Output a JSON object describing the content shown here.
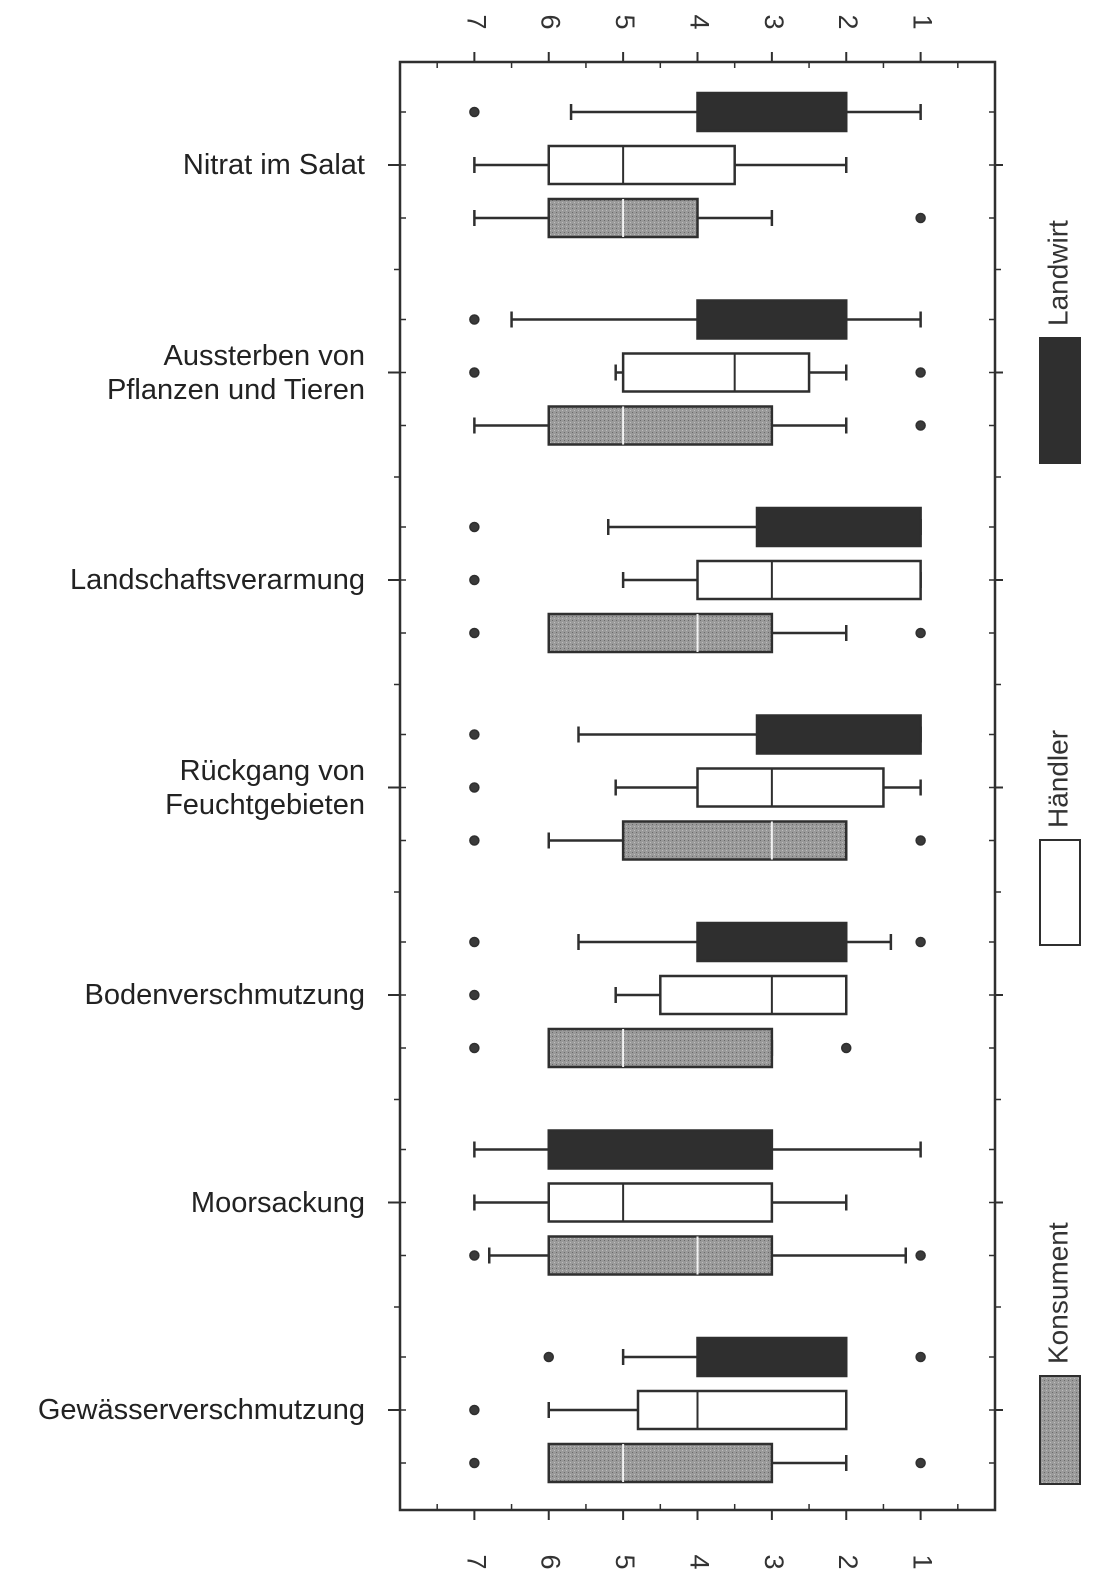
{
  "chart_data": {
    "type": "boxplot",
    "orientation": "horizontal",
    "value_axis": {
      "range": [
        0,
        8
      ],
      "reversed": true,
      "ticks": [
        7,
        6,
        5,
        4,
        3,
        2,
        1
      ],
      "tick_labels": [
        "7",
        "6",
        "5",
        "4",
        "3",
        "2",
        "1"
      ]
    },
    "categories": [
      {
        "label_lines": [
          "Nitrat im Salat"
        ]
      },
      {
        "label_lines": [
          "Aussterben von",
          "Pflanzen und Tieren"
        ]
      },
      {
        "label_lines": [
          "Landschaftsverarmung"
        ]
      },
      {
        "label_lines": [
          "Rückgang von",
          "Feuchtgebieten"
        ]
      },
      {
        "label_lines": [
          "Bodenverschmutzung"
        ]
      },
      {
        "label_lines": [
          "Moorsackung"
        ]
      },
      {
        "label_lines": [
          "Gewässerverschmutzung"
        ]
      }
    ],
    "series": [
      {
        "name": "Landwirt",
        "color": "#2f2f2f",
        "median_color": "#2f2f2f",
        "boxes": [
          {
            "whisker_low": 1,
            "q1": 2,
            "median": 2,
            "q3": 4,
            "whisker_high": 5.7,
            "outliers": [
              7
            ]
          },
          {
            "whisker_low": 1,
            "q1": 2,
            "median": 2,
            "q3": 4,
            "whisker_high": 6.5,
            "outliers": [
              7
            ]
          },
          {
            "whisker_low": 1,
            "q1": 1,
            "median": 1,
            "q3": 3.2,
            "whisker_high": 5.2,
            "outliers": [
              7
            ]
          },
          {
            "whisker_low": 1,
            "q1": 1,
            "median": 1,
            "q3": 3.2,
            "whisker_high": 5.6,
            "outliers": [
              7
            ]
          },
          {
            "whisker_low": 1.4,
            "q1": 2,
            "median": 2,
            "q3": 4,
            "whisker_high": 5.6,
            "outliers": [
              7,
              1
            ]
          },
          {
            "whisker_low": 1,
            "q1": 3,
            "median": 3,
            "q3": 6,
            "whisker_high": 7,
            "outliers": []
          },
          {
            "whisker_low": 2,
            "q1": 2,
            "median": 2,
            "q3": 4,
            "whisker_high": 5,
            "outliers": [
              6,
              1
            ]
          }
        ]
      },
      {
        "name": "Händler",
        "color": "#ffffff",
        "median_color": "#2f2f2f",
        "boxes": [
          {
            "whisker_low": 2,
            "q1": 3.5,
            "median": 5,
            "q3": 6,
            "whisker_high": 7,
            "outliers": []
          },
          {
            "whisker_low": 2,
            "q1": 2.5,
            "median": 3.5,
            "q3": 5,
            "whisker_high": 5.1,
            "outliers": [
              7,
              1
            ]
          },
          {
            "whisker_low": 1,
            "q1": 1,
            "median": 3,
            "q3": 4,
            "whisker_high": 5,
            "outliers": [
              7
            ]
          },
          {
            "whisker_low": 1,
            "q1": 1.5,
            "median": 3,
            "q3": 4,
            "whisker_high": 5.1,
            "outliers": [
              7
            ]
          },
          {
            "whisker_low": 2,
            "q1": 2,
            "median": 3,
            "q3": 4.5,
            "whisker_high": 5.1,
            "outliers": [
              7
            ]
          },
          {
            "whisker_low": 2,
            "q1": 3,
            "median": 5,
            "q3": 6,
            "whisker_high": 7,
            "outliers": []
          },
          {
            "whisker_low": 2,
            "q1": 2,
            "median": 4,
            "q3": 4.8,
            "whisker_high": 6,
            "outliers": [
              7
            ]
          }
        ]
      },
      {
        "name": "Konsument",
        "color": "#9a9a9a",
        "median_color": "#f2f2f2",
        "boxes": [
          {
            "whisker_low": 3,
            "q1": 4,
            "median": 5,
            "q3": 6,
            "whisker_high": 7,
            "outliers": [
              1
            ]
          },
          {
            "whisker_low": 2,
            "q1": 3,
            "median": 5,
            "q3": 6,
            "whisker_high": 7,
            "outliers": [
              1
            ]
          },
          {
            "whisker_low": 2,
            "q1": 3,
            "median": 4,
            "q3": 6,
            "whisker_high": 6,
            "outliers": [
              7,
              1
            ]
          },
          {
            "whisker_low": 2,
            "q1": 2,
            "median": 3,
            "q3": 5,
            "whisker_high": 6,
            "outliers": [
              7,
              1
            ]
          },
          {
            "whisker_low": 3,
            "q1": 3,
            "median": 5,
            "q3": 6,
            "whisker_high": 6,
            "outliers": [
              7,
              2
            ]
          },
          {
            "whisker_low": 1.2,
            "q1": 3,
            "median": 4,
            "q3": 6,
            "whisker_high": 6.8,
            "outliers": [
              7,
              1
            ]
          },
          {
            "whisker_low": 2,
            "q1": 3,
            "median": 5,
            "q3": 6,
            "whisker_high": 6,
            "outliers": [
              7,
              1
            ]
          }
        ]
      }
    ],
    "legend": {
      "placement": "right",
      "orientation": "rotated-vertical",
      "entries": [
        {
          "name": "Landwirt",
          "color": "#2f2f2f"
        },
        {
          "name": "Händler",
          "color": "#ffffff"
        },
        {
          "name": "Konsument",
          "color": "#9a9a9a"
        }
      ]
    },
    "grid": false,
    "title": "",
    "xlabel": "",
    "ylabel": ""
  }
}
